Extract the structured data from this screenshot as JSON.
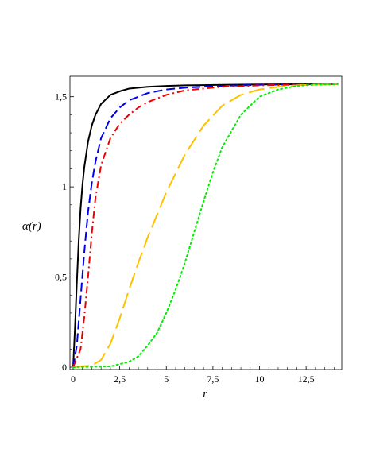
{
  "chart_data": {
    "type": "line",
    "xlabel": "r",
    "ylabel": "α(r)",
    "xlim": [
      0,
      14.2
    ],
    "ylim": [
      0,
      1.6
    ],
    "x_ticks": [
      0,
      2.5,
      5,
      7.5,
      10,
      12.5
    ],
    "x_tick_labels": [
      "0",
      "2,5",
      "5",
      "7,5",
      "10",
      "12,5"
    ],
    "y_ticks": [
      0,
      0.5,
      1,
      1.5
    ],
    "y_tick_labels": [
      "0",
      "0,5",
      "1",
      "1,5"
    ],
    "grid": false,
    "legend": "none",
    "series": [
      {
        "color": "#000000",
        "style": "solid",
        "x": [
          0,
          0.1,
          0.2,
          0.3,
          0.4,
          0.5,
          0.6,
          0.8,
          1,
          1.2,
          1.5,
          2,
          2.5,
          3,
          4,
          5,
          6,
          8,
          10,
          12.5,
          14.2
        ],
        "y": [
          0,
          0.22,
          0.47,
          0.7,
          0.88,
          1.01,
          1.11,
          1.25,
          1.34,
          1.4,
          1.46,
          1.51,
          1.53,
          1.545,
          1.555,
          1.56,
          1.563,
          1.566,
          1.568,
          1.569,
          1.57
        ]
      },
      {
        "color": "#0000ee",
        "style": "dashed",
        "x": [
          0,
          0.2,
          0.4,
          0.6,
          0.8,
          1,
          1.2,
          1.5,
          2,
          2.5,
          3,
          4,
          5,
          6,
          8,
          10,
          12.5,
          14.2
        ],
        "y": [
          0,
          0.12,
          0.38,
          0.64,
          0.86,
          1.02,
          1.14,
          1.27,
          1.38,
          1.44,
          1.48,
          1.52,
          1.54,
          1.55,
          1.56,
          1.566,
          1.569,
          1.57
        ]
      },
      {
        "color": "#ee0000",
        "style": "dashdot",
        "x": [
          0,
          0.4,
          0.6,
          0.8,
          1,
          1.2,
          1.5,
          2,
          2.5,
          3,
          3.5,
          4,
          5,
          6,
          8,
          10,
          12.5,
          14.2
        ],
        "y": [
          0,
          0.1,
          0.28,
          0.5,
          0.74,
          0.94,
          1.12,
          1.27,
          1.35,
          1.4,
          1.44,
          1.47,
          1.51,
          1.535,
          1.555,
          1.563,
          1.568,
          1.57
        ]
      },
      {
        "color": "#ffc000",
        "style": "longdash",
        "x": [
          0,
          1,
          1.5,
          2,
          2.5,
          3,
          3.5,
          4,
          5,
          6,
          7,
          8,
          9,
          10,
          11,
          12,
          13,
          14.2
        ],
        "y": [
          0,
          0.01,
          0.04,
          0.13,
          0.27,
          0.43,
          0.58,
          0.72,
          0.97,
          1.18,
          1.34,
          1.45,
          1.51,
          1.54,
          1.555,
          1.563,
          1.567,
          1.57
        ]
      },
      {
        "color": "#00ee00",
        "style": "dotted",
        "x": [
          0,
          2,
          3,
          3.5,
          4,
          4.5,
          5,
          5.5,
          6,
          6.5,
          7,
          7.5,
          8,
          9,
          10,
          11,
          12,
          13,
          14.2
        ],
        "y": [
          0,
          0.004,
          0.03,
          0.06,
          0.12,
          0.19,
          0.3,
          0.43,
          0.58,
          0.75,
          0.92,
          1.08,
          1.22,
          1.4,
          1.5,
          1.54,
          1.56,
          1.567,
          1.57
        ]
      }
    ]
  }
}
